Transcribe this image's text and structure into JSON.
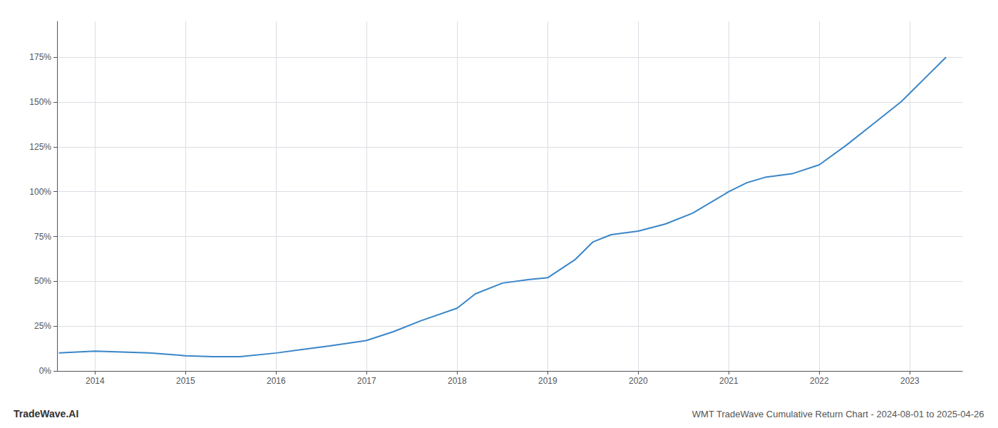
{
  "chart_data": {
    "type": "line",
    "title": "TradeWave.AI",
    "subtitle": "WMT TradeWave Cumulative Return Chart - 2024-08-01 to 2025-04-26",
    "x": [
      2013.6,
      2014.0,
      2014.3,
      2014.6,
      2015.0,
      2015.3,
      2015.6,
      2016.0,
      2016.3,
      2016.6,
      2017.0,
      2017.3,
      2017.6,
      2018.0,
      2018.2,
      2018.5,
      2018.8,
      2019.0,
      2019.3,
      2019.5,
      2019.7,
      2020.0,
      2020.3,
      2020.6,
      2021.0,
      2021.2,
      2021.4,
      2021.7,
      2022.0,
      2022.3,
      2022.6,
      2022.9,
      2023.0,
      2023.2,
      2023.4
    ],
    "values": [
      10,
      11,
      10.5,
      10,
      8.5,
      8,
      8,
      10,
      12,
      14,
      17,
      22,
      28,
      35,
      43,
      49,
      51,
      52,
      62,
      72,
      76,
      78,
      82,
      88,
      100,
      105,
      108,
      110,
      115,
      126,
      138,
      150,
      155,
      165,
      175
    ],
    "color": "#3a86c8",
    "xlim": [
      2013.58,
      2023.58
    ],
    "xticks": [
      2014,
      2015,
      2016,
      2017,
      2018,
      2019,
      2020,
      2021,
      2022,
      2023
    ],
    "ylim": [
      0,
      195
    ],
    "yticks": [
      {
        "value": 0,
        "label": "0%"
      },
      {
        "value": 25,
        "label": "25%"
      },
      {
        "value": 50,
        "label": "50%"
      },
      {
        "value": 75,
        "label": "75%"
      },
      {
        "value": 100,
        "label": "100%"
      },
      {
        "value": 125,
        "label": "125%"
      },
      {
        "value": 150,
        "label": "150%"
      },
      {
        "value": 175,
        "label": "175%"
      }
    ],
    "grid": true
  }
}
